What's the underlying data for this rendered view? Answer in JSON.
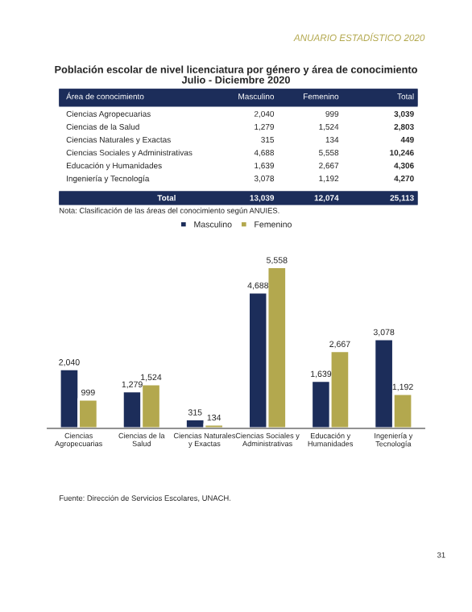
{
  "chart_data": {
    "type": "bar",
    "title": "Población escolar de nivel licenciatura por género y área de conocimiento",
    "subtitle": "Julio - Diciembre 2020",
    "categories": [
      "Ciencias\nAgropecuarias",
      "Ciencias de la\nSalud",
      "Ciencias Naturales\ny Exactas",
      "Ciencias Sociales y\nAdministrativas",
      "Educación y\nHumanidades",
      "Ingeniería y\nTecnología"
    ],
    "series": [
      {
        "name": "Masculino",
        "color": "#1c2d5a",
        "values": [
          2040,
          1279,
          315,
          4688,
          1639,
          3078
        ],
        "value_labels": [
          "2,040",
          "1,279",
          "315",
          "4,688",
          "1,639",
          "3,078"
        ]
      },
      {
        "name": "Femenino",
        "color": "#b3a84e",
        "values": [
          999,
          1524,
          134,
          5558,
          2667,
          1192
        ],
        "value_labels": [
          "999",
          "1,524",
          "134",
          "5,558",
          "2,667",
          "1,192"
        ]
      }
    ],
    "legend": "top",
    "grid": false,
    "annotations": [
      "ANUARIO ESTADÍSTICO 2020",
      "Área de conocimiento",
      "Total",
      "Total",
      "13,039",
      "12,074",
      "25,113",
      "Nota: Clasificación de las áreas del conocimiento según ANUIES.",
      "Fuente: Dirección de Servicios Escolares, UNACH.",
      "31",
      "3,039",
      "2,803",
      "449",
      "10,246",
      "4,306",
      "4,270"
    ]
  }
}
